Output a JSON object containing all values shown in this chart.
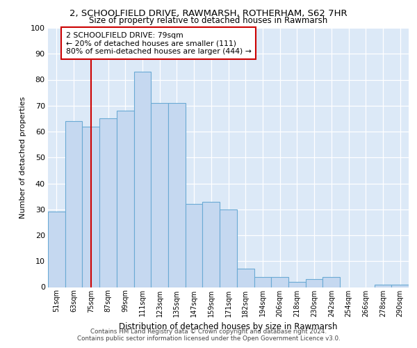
{
  "title1": "2, SCHOOLFIELD DRIVE, RAWMARSH, ROTHERHAM, S62 7HR",
  "title2": "Size of property relative to detached houses in Rawmarsh",
  "xlabel": "Distribution of detached houses by size in Rawmarsh",
  "ylabel": "Number of detached properties",
  "categories": [
    "51sqm",
    "63sqm",
    "75sqm",
    "87sqm",
    "99sqm",
    "111sqm",
    "123sqm",
    "135sqm",
    "147sqm",
    "159sqm",
    "171sqm",
    "182sqm",
    "194sqm",
    "206sqm",
    "218sqm",
    "230sqm",
    "242sqm",
    "254sqm",
    "266sqm",
    "278sqm",
    "290sqm"
  ],
  "values": [
    29,
    64,
    62,
    65,
    68,
    83,
    71,
    71,
    32,
    33,
    30,
    7,
    4,
    4,
    2,
    3,
    4,
    0,
    0,
    1,
    1
  ],
  "bar_color": "#c5d8f0",
  "bar_edge_color": "#6aaad4",
  "ylim": [
    0,
    100
  ],
  "yticks": [
    0,
    10,
    20,
    30,
    40,
    50,
    60,
    70,
    80,
    90,
    100
  ],
  "property_line_x": 2.0,
  "property_line_color": "#cc0000",
  "annotation_text": "2 SCHOOLFIELD DRIVE: 79sqm\n← 20% of detached houses are smaller (111)\n80% of semi-detached houses are larger (444) →",
  "annotation_box_color": "#ffffff",
  "annotation_box_edge": "#cc0000",
  "footer1": "Contains HM Land Registry data © Crown copyright and database right 2024.",
  "footer2": "Contains public sector information licensed under the Open Government Licence v3.0.",
  "plot_bg_color": "#dce9f7"
}
